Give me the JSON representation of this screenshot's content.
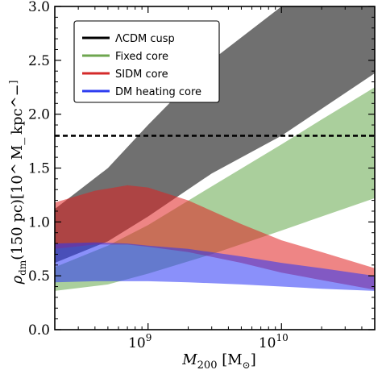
{
  "chart_data": {
    "type": "area",
    "xscale": "log",
    "xlim": [
      200000000,
      50000000000
    ],
    "ylim": [
      0.0,
      3.0
    ],
    "ylabel": "ρ_dm(150 pc)[10^8 M_⊙ kpc^−3]",
    "xlabel": "M_200 [M_⊙]",
    "x_tick_labels": [
      "10^9",
      "10^10"
    ],
    "y_tick_labels": [
      "0.0",
      "0.5",
      "1.0",
      "1.5",
      "2.0",
      "2.5",
      "3.0"
    ],
    "grid": false,
    "legend_position": "top-left",
    "reference_line": {
      "style": "dashed",
      "color": "#000000",
      "y": 1.8
    },
    "series": [
      {
        "name": "ΛCDM cusp",
        "color": "#404040",
        "fill_opacity": 0.75,
        "x": [
          200000000,
          500000000,
          1000000000,
          3000000000,
          10000000000,
          20000000000,
          50000000000
        ],
        "upper": [
          1.12,
          1.5,
          1.9,
          2.5,
          3.0,
          3.05,
          3.1
        ],
        "lower": [
          0.62,
          0.82,
          1.05,
          1.45,
          1.8,
          2.05,
          2.38
        ]
      },
      {
        "name": "Fixed core",
        "color": "#55a03a",
        "fill_opacity": 0.5,
        "x": [
          200000000,
          500000000,
          1000000000,
          3000000000,
          10000000000,
          20000000000,
          50000000000
        ],
        "upper": [
          0.58,
          0.78,
          0.97,
          1.33,
          1.72,
          1.95,
          2.25
        ],
        "lower": [
          0.36,
          0.42,
          0.52,
          0.7,
          0.92,
          1.05,
          1.22
        ]
      },
      {
        "name": "SIDM core",
        "color": "#e02020",
        "fill_opacity": 0.55,
        "x": [
          200000000,
          400000000,
          700000000,
          1000000000,
          2000000000,
          5000000000,
          10000000000,
          20000000000,
          50000000000
        ],
        "upper": [
          1.18,
          1.29,
          1.34,
          1.32,
          1.2,
          0.98,
          0.83,
          0.72,
          0.57
        ],
        "lower": [
          0.75,
          0.79,
          0.79,
          0.77,
          0.72,
          0.62,
          0.53,
          0.46,
          0.37
        ]
      },
      {
        "name": "DM heating core",
        "color": "#2a35f5",
        "fill_opacity": 0.55,
        "x": [
          200000000,
          400000000,
          700000000,
          1000000000,
          2000000000,
          5000000000,
          10000000000,
          20000000000,
          50000000000
        ],
        "upper": [
          0.8,
          0.81,
          0.8,
          0.78,
          0.75,
          0.68,
          0.62,
          0.57,
          0.5
        ],
        "lower": [
          0.44,
          0.45,
          0.45,
          0.45,
          0.44,
          0.42,
          0.4,
          0.38,
          0.36
        ]
      }
    ]
  }
}
